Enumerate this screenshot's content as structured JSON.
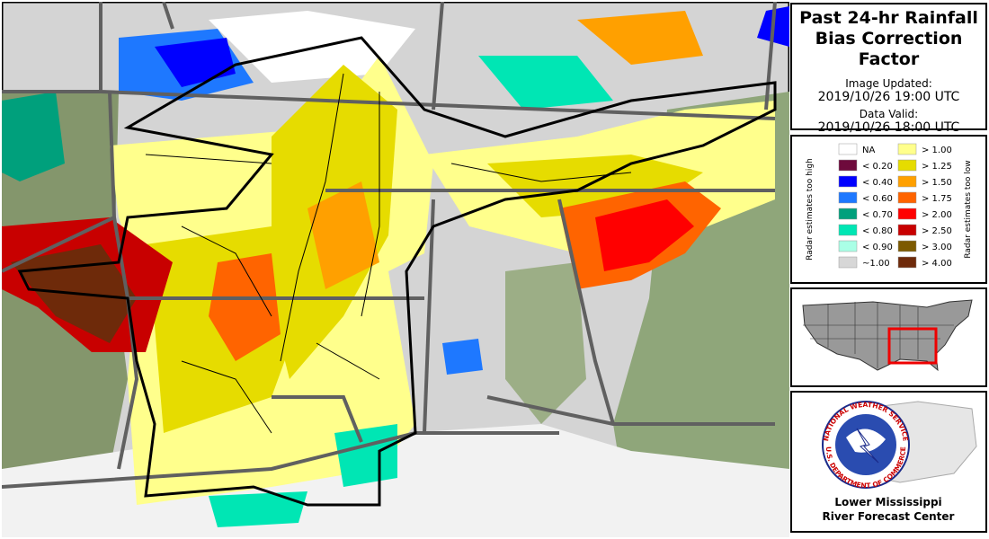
{
  "header": {
    "title_lines": [
      "Past 24-hr Rainfall",
      "Bias Correction Factor"
    ],
    "image_updated_label": "Image Updated:",
    "image_updated": "2019/10/26 19:00 UTC",
    "data_valid_label": "Data Valid:",
    "data_valid": "2019/10/26 18:00 UTC"
  },
  "legend": {
    "left_label": "Radar estimates too high",
    "right_label": "Radar estimates too low",
    "low": [
      {
        "label": "NA",
        "color": "#ffffff"
      },
      {
        "label": "< 0.20",
        "color": "#6e0a3c"
      },
      {
        "label": "< 0.40",
        "color": "#0000ff"
      },
      {
        "label": "< 0.60",
        "color": "#1e78ff"
      },
      {
        "label": "< 0.70",
        "color": "#00a07c"
      },
      {
        "label": "< 0.80",
        "color": "#00e6b4"
      },
      {
        "label": "< 0.90",
        "color": "#aaffe6"
      },
      {
        "label": "~1.00",
        "color": "#d7d7d7"
      }
    ],
    "high": [
      {
        "label": "> 1.00",
        "color": "#ffff8c"
      },
      {
        "label": "> 1.25",
        "color": "#e6dc00"
      },
      {
        "label": "> 1.50",
        "color": "#ffa000"
      },
      {
        "label": "> 1.75",
        "color": "#ff6400"
      },
      {
        "label": "> 2.00",
        "color": "#ff0000"
      },
      {
        "label": "> 2.50",
        "color": "#c80000"
      },
      {
        "label": "> 3.00",
        "color": "#7d5a00"
      },
      {
        "label": "> 4.00",
        "color": "#6e2a0a"
      }
    ]
  },
  "logo": {
    "ring_top": "NATIONAL WEATHER SERVICE",
    "ring_bottom": "U.S. DEPARTMENT OF COMMERCE"
  },
  "footer": [
    "Lower Mississippi",
    "River Forecast Center"
  ]
}
